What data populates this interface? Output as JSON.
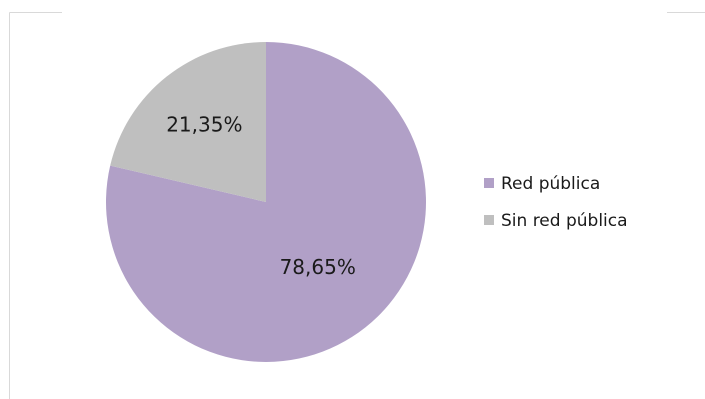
{
  "chart_data": {
    "type": "pie",
    "categories": [
      "Red pública",
      "Sin red pública"
    ],
    "values": [
      78.65,
      21.35
    ],
    "labels": [
      "78,65%",
      "21,35%"
    ],
    "colors": [
      "#b1a0c7",
      "#bfbfbf"
    ],
    "start_angle_deg": 0,
    "direction": "clockwise",
    "legend_position": "right"
  },
  "legend": {
    "items": [
      {
        "label": "Red pública",
        "color": "#b1a0c7"
      },
      {
        "label": "Sin red pública",
        "color": "#bfbfbf"
      }
    ]
  }
}
